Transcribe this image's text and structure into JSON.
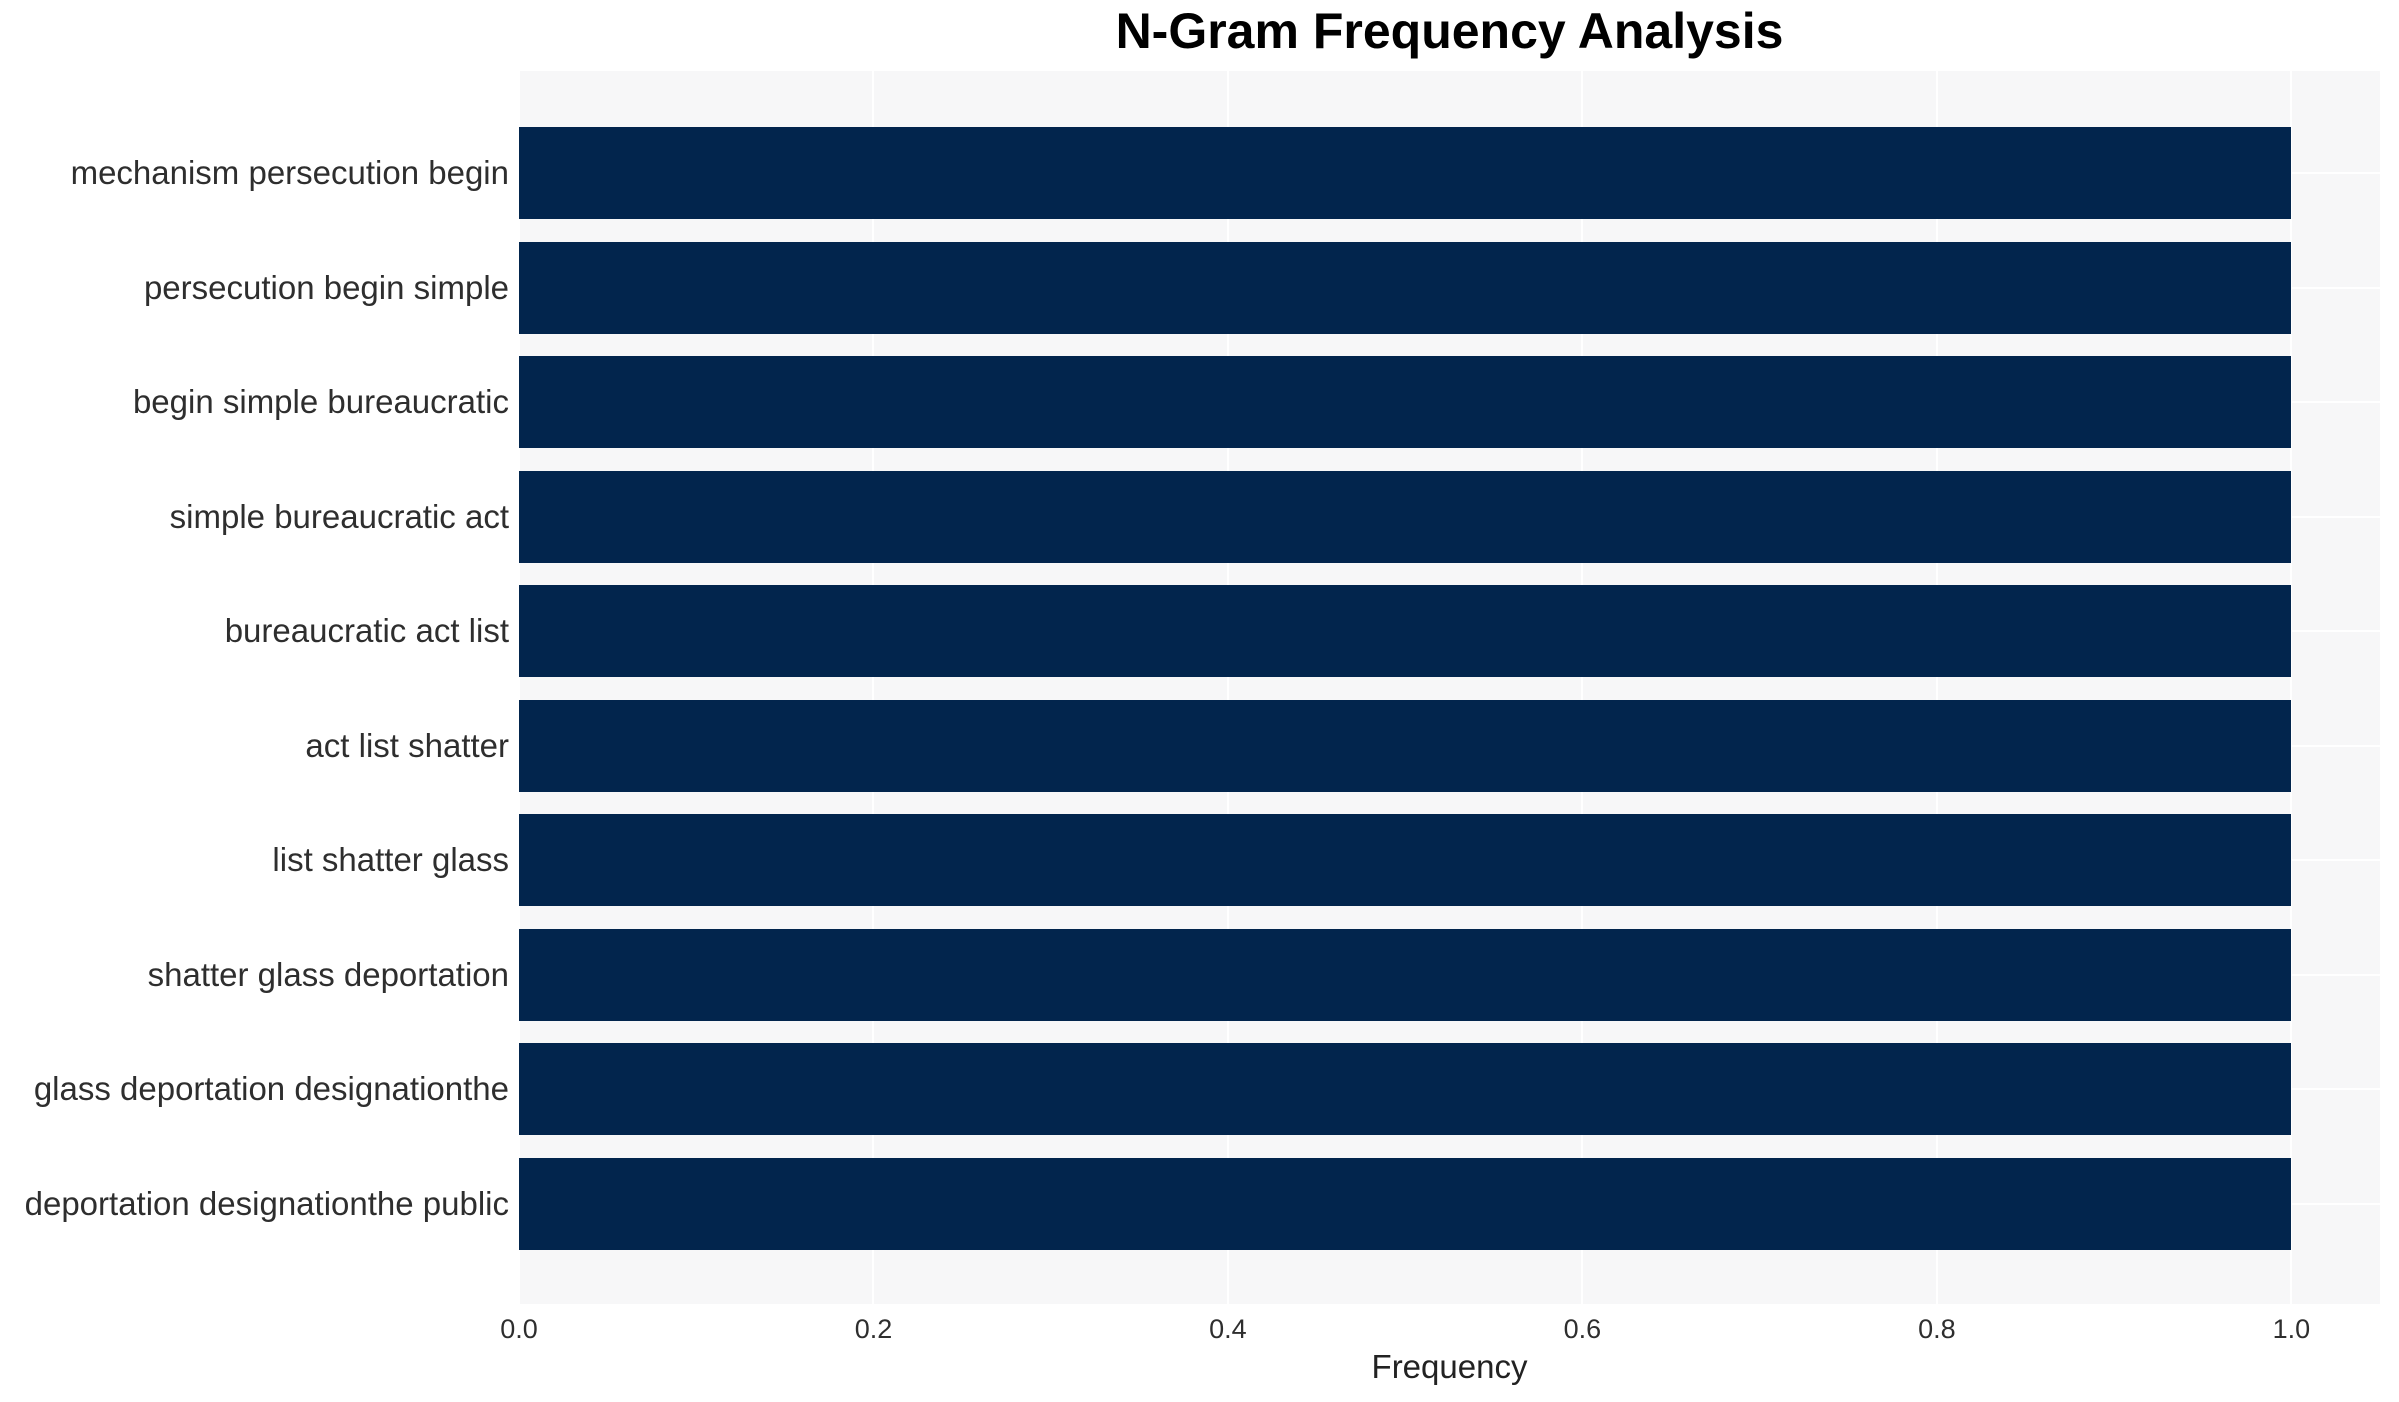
{
  "page": {
    "background_color": "#ffffff"
  },
  "chart_data": {
    "type": "bar",
    "orientation": "horizontal",
    "title": "N-Gram Frequency Analysis",
    "xlabel": "Frequency",
    "ylabel": "",
    "categories": [
      "mechanism persecution begin",
      "persecution begin simple",
      "begin simple bureaucratic",
      "simple bureaucratic act",
      "bureaucratic act list",
      "act list shatter",
      "list shatter glass",
      "shatter glass deportation",
      "glass deportation designationthe",
      "deportation designationthe public"
    ],
    "values": [
      1.0,
      1.0,
      1.0,
      1.0,
      1.0,
      1.0,
      1.0,
      1.0,
      1.0,
      1.0
    ],
    "xlim": [
      0,
      1.05
    ],
    "xticks": [
      {
        "value": 0.0,
        "label": "0.0"
      },
      {
        "value": 0.2,
        "label": "0.2"
      },
      {
        "value": 0.4,
        "label": "0.4"
      },
      {
        "value": 0.6,
        "label": "0.6"
      },
      {
        "value": 0.8,
        "label": "0.8"
      },
      {
        "value": 1.0,
        "label": "1.0"
      }
    ],
    "grid": true,
    "legend": false,
    "colors": {
      "bar": "#02254d",
      "plot_background": "#f7f7f8",
      "gridline": "#ffffff",
      "title_text": "#000000",
      "tick_text": "#2e2e2e",
      "axis_label_text": "#222222"
    }
  }
}
